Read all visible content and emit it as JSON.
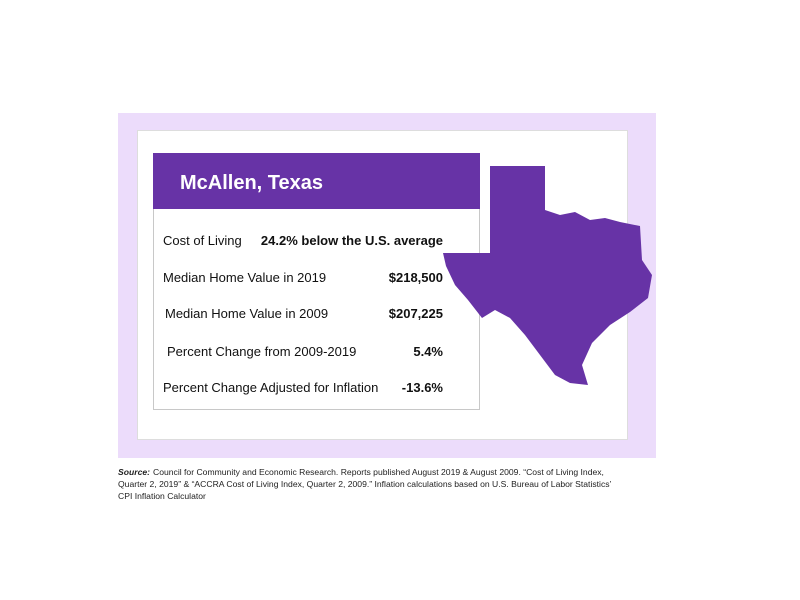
{
  "card": {
    "title": "McAllen, Texas",
    "rows": [
      {
        "label": "Cost of Living",
        "value": "24.2% below the U.S. average"
      },
      {
        "label": "Median Home Value in 2019",
        "value": "$218,500"
      },
      {
        "label": "Median Home Value in 2009",
        "value": "$207,225"
      },
      {
        "label": "Percent Change from 2009-2019",
        "value": "5.4%"
      },
      {
        "label": "Percent Change Adjusted for Inflation",
        "value": "-13.6%"
      }
    ]
  },
  "source": {
    "label": "Source:",
    "text": "Council for Community and Economic Research. Reports published August 2019 & August 2009. “Cost of Living Index, Quarter 2, 2019” & “ACCRA Cost of Living Index, Quarter 2, 2009.” Inflation calculations based on U.S. Bureau of Labor Statistics’ CPI Inflation Calculator"
  }
}
